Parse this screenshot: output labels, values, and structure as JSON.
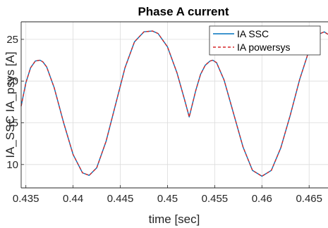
{
  "chart_data": {
    "type": "line",
    "title": "Phase A current",
    "xlabel": "time [sec]",
    "ylabel": "IA_SSC IA_psys [A]",
    "xlim": [
      0.4345,
      0.467
    ],
    "ylim": [
      7.2,
      27.1
    ],
    "x_ticks": [
      0.435,
      0.44,
      0.445,
      0.45,
      0.455,
      0.46,
      0.465
    ],
    "x_tick_labels": [
      "0.435",
      "0.44",
      "0.445",
      "0.45",
      "0.455",
      "0.46",
      "0.465"
    ],
    "y_ticks": [
      10,
      15,
      20,
      25
    ],
    "y_tick_labels": [
      "10",
      "15",
      "20",
      "25"
    ],
    "grid": true,
    "legend_position": "top-right",
    "x": [
      0.4345,
      0.435,
      0.4355,
      0.436,
      0.4365,
      0.4368,
      0.4372,
      0.438,
      0.439,
      0.44,
      0.441,
      0.4417,
      0.4425,
      0.4435,
      0.4445,
      0.4455,
      0.4465,
      0.4475,
      0.4484,
      0.449,
      0.45,
      0.451,
      0.4518,
      0.4523,
      0.453,
      0.4535,
      0.454,
      0.4545,
      0.4548,
      0.4552,
      0.456,
      0.457,
      0.458,
      0.459,
      0.46,
      0.461,
      0.462,
      0.463,
      0.464,
      0.465,
      0.466,
      0.4666,
      0.467
    ],
    "series": [
      {
        "name": "IA SSC",
        "color": "#0072BD",
        "style": "solid",
        "values": [
          17.0,
          19.8,
          21.6,
          22.4,
          22.5,
          22.3,
          21.7,
          19.2,
          15.0,
          11.2,
          9.0,
          8.7,
          9.6,
          12.8,
          17.2,
          21.6,
          24.7,
          25.9,
          26.0,
          25.7,
          24.1,
          21.0,
          17.8,
          15.7,
          18.9,
          20.8,
          21.9,
          22.4,
          22.5,
          22.2,
          20.1,
          16.1,
          12.1,
          9.3,
          8.6,
          9.3,
          12.0,
          15.9,
          20.2,
          23.7,
          25.6,
          25.9,
          25.6
        ]
      },
      {
        "name": "IA powersys",
        "color": "#D62728",
        "style": "dashed",
        "values": [
          17.0,
          19.8,
          21.6,
          22.4,
          22.5,
          22.3,
          21.7,
          19.2,
          15.0,
          11.2,
          9.0,
          8.7,
          9.6,
          12.8,
          17.2,
          21.6,
          24.7,
          25.9,
          26.0,
          25.7,
          24.1,
          21.0,
          17.8,
          15.7,
          18.9,
          20.8,
          21.9,
          22.4,
          22.5,
          22.2,
          20.1,
          16.1,
          12.1,
          9.3,
          8.6,
          9.3,
          12.0,
          15.9,
          20.2,
          23.7,
          25.6,
          25.9,
          25.6
        ]
      }
    ]
  }
}
